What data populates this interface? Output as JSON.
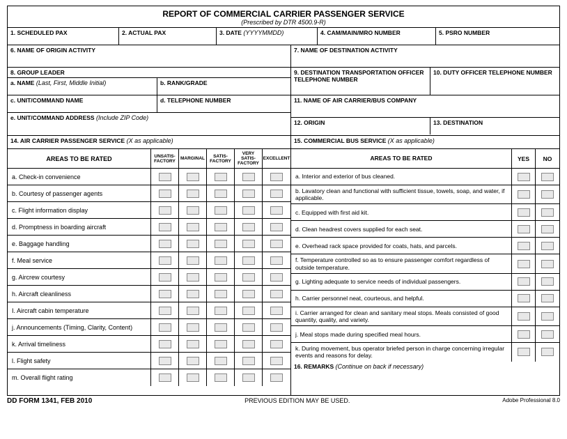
{
  "header": {
    "title": "REPORT OF COMMERCIAL CARRIER PASSENGER SERVICE",
    "subtitle": "(Prescribed by DTR 4500.9-R)"
  },
  "fields": {
    "f1": "1. SCHEDULED PAX",
    "f2": "2. ACTUAL PAX",
    "f3": "3. DATE ",
    "f3_hint": "(YYYYMMDD)",
    "f4": "4. CAM/MAIN/MRO NUMBER",
    "f5": "5. PSRO NUMBER",
    "f6": "6. NAME OF ORIGIN ACTIVITY",
    "f7": "7. NAME OF DESTINATION ACTIVITY",
    "f8": "8. GROUP LEADER",
    "f8a": "a. NAME ",
    "f8a_hint": "(Last, First, Middle Initial)",
    "f8b": "b. RANK/GRADE",
    "f8c": "c. UNIT/COMMAND NAME",
    "f8d": "d. TELEPHONE NUMBER",
    "f8e": "e. UNIT/COMMAND ADDRESS ",
    "f8e_hint": "(Include ZIP Code)",
    "f9": "9. DESTINATION TRANSPORTATION OFFICER TELEPHONE NUMBER",
    "f10": "10. DUTY OFFICER  TELEPHONE NUMBER",
    "f11": "11. NAME OF AIR CARRIER/BUS COMPANY",
    "f12": "12. ORIGIN",
    "f13": "13. DESTINATION",
    "f14": "14. AIR CARRIER PASSENGER SERVICE ",
    "f14_hint": "(X as applicable)",
    "f15": "15. COMMERCIAL BUS SERVICE ",
    "f15_hint": "(X as applicable)",
    "f16": "16. REMARKS ",
    "f16_hint": "(Continue on back if necessary)"
  },
  "air_headers": {
    "areas": "AREAS TO BE RATED",
    "c1": "UNSATIS-FACTORY",
    "c2": "MARGINAL",
    "c3": "SATIS-FACTORY",
    "c4": "VERY SATIS-FACTORY",
    "c5": "EXCELLENT"
  },
  "air_rows": [
    "a.  Check-in convenience",
    "b.  Courtesy of passenger agents",
    "c.  Flight information display",
    "d.  Promptness in boarding aircraft",
    "e.  Baggage handling",
    "f.  Meal service",
    "g.  Aircrew courtesy",
    "h.  Aircraft cleanliness",
    "I.  Aircraft cabin temperature",
    "j.  Announcements (Timing, Clarity, Content)",
    "k.  Arrival timeliness",
    "l.  Flight safety",
    "m. Overall flight rating"
  ],
  "bus_headers": {
    "areas": "AREAS TO BE RATED",
    "yes": "YES",
    "no": "NO"
  },
  "bus_rows": [
    "a.  Interior and exterior of bus cleaned.",
    "b.  Lavatory clean and functional with sufficient tissue, towels, soap, and water, if applicable.",
    "c.  Equipped with first aid kit.",
    "d.  Clean headrest covers supplied for each seat.",
    "e.  Overhead rack space provided for coats, hats, and parcels.",
    "f.  Temperature controlled so as to ensure passenger comfort regardless of outside temperature.",
    "g.  Lighting adequate to service needs of individual passengers.",
    "h.  Carrier personnel neat, courteous, and helpful.",
    "i.  Carrier arranged for clean and sanitary meal stops.  Meals consisted of good quantity, quality, and variety.",
    "j.  Meal stops made during specified meal hours.",
    "k.  During movement, bus operator briefed person in charge concerning irregular events and reasons for delay."
  ],
  "footer": {
    "left": "DD FORM 1341, FEB 2010",
    "center": "PREVIOUS EDITION MAY BE USED.",
    "right": "Adobe Professional 8.0"
  }
}
